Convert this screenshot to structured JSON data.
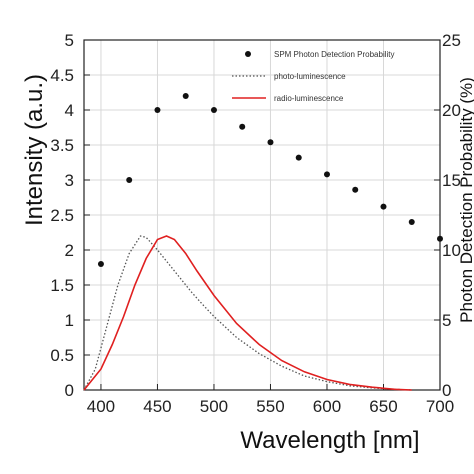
{
  "chart_data": {
    "type": "line",
    "title": "",
    "xlabel": "Wavelength [nm]",
    "ylabel": "Intensity (a.u.)",
    "y2label": "Photon Detection Probability (%)",
    "xlim": [
      385,
      700
    ],
    "ylim": [
      0,
      5
    ],
    "y2lim": [
      0,
      25
    ],
    "x_ticks": [
      400,
      450,
      500,
      550,
      600,
      650,
      700
    ],
    "y_ticks": [
      0,
      0.5,
      1,
      1.5,
      2,
      2.5,
      3,
      3.5,
      4,
      4.5,
      5
    ],
    "y2_ticks": [
      0,
      5,
      10,
      15,
      20,
      25
    ],
    "grid": true,
    "legend_position": "top-right",
    "series": [
      {
        "name": "SPM Photon Detection Probability",
        "type": "scatter",
        "axis": "right",
        "color": "#111111",
        "x": [
          400,
          425,
          450,
          475,
          500,
          525,
          550,
          575,
          600,
          625,
          650,
          675,
          700
        ],
        "y": [
          9,
          15,
          20,
          21,
          20,
          18.8,
          17.7,
          16.6,
          15.4,
          14.3,
          13.1,
          12,
          10.8
        ]
      },
      {
        "name": "photo-luminescence",
        "type": "line",
        "style": "dotted",
        "axis": "left",
        "color": "#555555",
        "x": [
          385,
          395,
          405,
          415,
          425,
          435,
          440,
          450,
          460,
          470,
          480,
          490,
          500,
          520,
          540,
          560,
          580,
          600,
          620,
          640,
          660,
          675
        ],
        "y": [
          0,
          0.3,
          0.9,
          1.5,
          1.95,
          2.2,
          2.18,
          2.0,
          1.8,
          1.6,
          1.4,
          1.22,
          1.05,
          0.75,
          0.52,
          0.34,
          0.2,
          0.12,
          0.06,
          0.03,
          0.01,
          0
        ]
      },
      {
        "name": "radio-luminescence",
        "type": "line",
        "style": "solid",
        "axis": "left",
        "color": "#e02020",
        "x": [
          385,
          400,
          410,
          420,
          430,
          440,
          450,
          458,
          465,
          475,
          485,
          500,
          520,
          540,
          560,
          580,
          600,
          620,
          640,
          660,
          675
        ],
        "y": [
          0,
          0.3,
          0.65,
          1.05,
          1.5,
          1.88,
          2.15,
          2.2,
          2.15,
          1.95,
          1.7,
          1.35,
          0.95,
          0.65,
          0.42,
          0.26,
          0.15,
          0.08,
          0.04,
          0.01,
          0
        ]
      }
    ]
  }
}
